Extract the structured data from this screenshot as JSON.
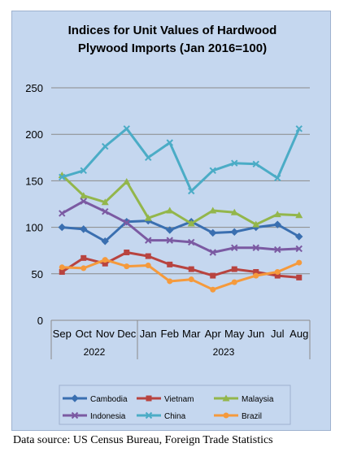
{
  "chart_data": {
    "type": "line",
    "title_lines": [
      "Indices for Unit Values of Hardwood",
      "Plywood Imports (Jan 2016=100)"
    ],
    "categories": [
      "Sep",
      "Oct",
      "Nov",
      "Dec",
      "Jan",
      "Feb",
      "Mar",
      "Apr",
      "May",
      "Jun",
      "Jul",
      "Aug"
    ],
    "year_groups": [
      {
        "label": "2022",
        "count": 4
      },
      {
        "label": "2023",
        "count": 8
      }
    ],
    "ylim": [
      0,
      250
    ],
    "yticks": [
      0,
      50,
      100,
      150,
      200,
      250
    ],
    "grid": true,
    "legend_position": "bottom",
    "series": [
      {
        "name": "Cambodia",
        "color": "#3a6fb0",
        "marker": "diamond",
        "values": [
          100,
          98,
          85,
          106,
          107,
          97,
          106,
          94,
          95,
          100,
          103,
          90
        ]
      },
      {
        "name": "Vietnam",
        "color": "#b8433f",
        "marker": "square",
        "values": [
          52,
          67,
          61,
          73,
          69,
          60,
          55,
          48,
          55,
          52,
          48,
          46
        ]
      },
      {
        "name": "Malaysia",
        "color": "#93b64b",
        "marker": "triangle",
        "values": [
          156,
          134,
          127,
          149,
          110,
          118,
          104,
          118,
          116,
          103,
          114,
          113
        ]
      },
      {
        "name": "Indonesia",
        "color": "#7b5aa2",
        "marker": "x",
        "values": [
          115,
          128,
          117,
          105,
          86,
          86,
          84,
          73,
          78,
          78,
          76,
          77
        ]
      },
      {
        "name": "China",
        "color": "#4bacc6",
        "marker": "x",
        "values": [
          154,
          161,
          187,
          206,
          175,
          191,
          139,
          161,
          169,
          168,
          153,
          206
        ]
      },
      {
        "name": "Brazil",
        "color": "#f59a3c",
        "marker": "circle",
        "values": [
          57,
          56,
          65,
          58,
          59,
          42,
          44,
          33,
          41,
          48,
          52,
          62
        ]
      }
    ]
  },
  "source_note": "Data source: US Census Bureau, Foreign Trade Statistics"
}
